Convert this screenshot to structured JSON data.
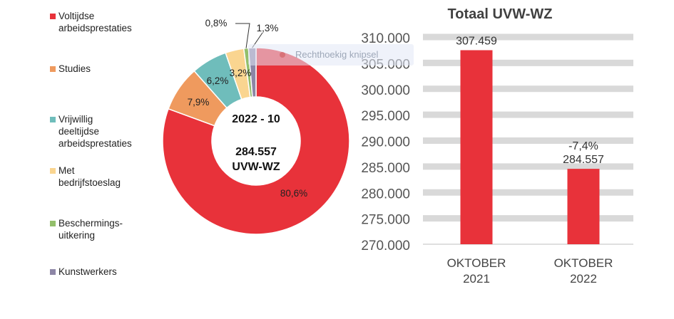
{
  "chart_data": [
    {
      "type": "pie",
      "variant": "donut",
      "center_text": {
        "line1": "2022 - 10",
        "line2": "284.557",
        "line3": "UVW-WZ"
      },
      "slices": [
        {
          "label": "Voltijdse arbeidsprestaties",
          "legend_lines": [
            "Voltijdse",
            "arbeidsprestaties"
          ],
          "value": 80.6,
          "value_label": "80,6%",
          "color": "#e8323a"
        },
        {
          "label": "Studies",
          "legend_lines": [
            "Studies"
          ],
          "value": 7.9,
          "value_label": "7,9%",
          "color": "#ef9a5e"
        },
        {
          "label": "Vrijwillig deeltijdse arbeidsprestaties",
          "legend_lines": [
            "Vrijwillig deeltijdse",
            "arbeidsprestaties"
          ],
          "value": 6.2,
          "value_label": "6,2%",
          "color": "#6fbdbb"
        },
        {
          "label": "Met bedrijfstoeslag",
          "legend_lines": [
            "Met bedrijfstoeslag"
          ],
          "value": 3.2,
          "value_label": "3,2%",
          "color": "#fad590"
        },
        {
          "label": "Beschermingsuitkering",
          "legend_lines": [
            "Beschermings-",
            "uitkering"
          ],
          "value": 0.8,
          "value_label": "0,8%",
          "color": "#93bf6b"
        },
        {
          "label": "Kunstwerkers",
          "legend_lines": [
            "Kunstwerkers"
          ],
          "value": 1.3,
          "value_label": "1,3%",
          "color": "#8d86a6"
        }
      ]
    },
    {
      "type": "bar",
      "title": "Totaal UVW-WZ",
      "categories": [
        [
          "OKTOBER",
          "2021"
        ],
        [
          "OKTOBER",
          "2022"
        ]
      ],
      "values": [
        307459,
        284557
      ],
      "value_labels": [
        "307.459",
        "284.557"
      ],
      "annotations": [
        {
          "category_index": 1,
          "text": "-7,4%"
        }
      ],
      "ylim": [
        270000,
        310000
      ],
      "yticks": [
        270000,
        275000,
        280000,
        285000,
        290000,
        295000,
        300000,
        305000,
        310000
      ],
      "ytick_labels": [
        "270.000",
        "275.000",
        "280.000",
        "285.000",
        "290.000",
        "295.000",
        "300.000",
        "305.000",
        "310.000"
      ],
      "bar_color": "#e8323a",
      "band_color": "#d9d9d9",
      "grid": true
    }
  ],
  "overlay": {
    "text": "Rechthoekig knipsel"
  }
}
